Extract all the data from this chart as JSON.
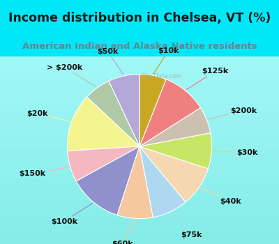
{
  "title": "Income distribution in Chelsea, VT (%)",
  "subtitle": "American Indian and Alaska Native residents",
  "labels": [
    "$50k",
    "> $200k",
    "$20k",
    "$150k",
    "$100k",
    "$60k",
    "$75k",
    "$40k",
    "$30k",
    "$200k",
    "$125k",
    "$10k"
  ],
  "values": [
    7,
    6,
    13,
    7,
    12,
    8,
    8,
    9,
    8,
    6,
    10,
    6
  ],
  "colors": [
    "#b3a8d8",
    "#afc9a6",
    "#f5f590",
    "#f5b8c0",
    "#9090cc",
    "#f5c8a0",
    "#add8f0",
    "#f5d8b0",
    "#c8e666",
    "#ccc0b0",
    "#f08080",
    "#c8a820"
  ],
  "bg_top_color": "#00e8f8",
  "bg_chart_gradient_start": "#f0fff0",
  "bg_chart_gradient_end": "#c8f5e8",
  "title_color": "#1a1a1a",
  "subtitle_color": "#5a8a90",
  "label_fontsize": 8,
  "title_fontsize": 12.5,
  "subtitle_fontsize": 9.5,
  "watermark_text": "City-Data.com"
}
